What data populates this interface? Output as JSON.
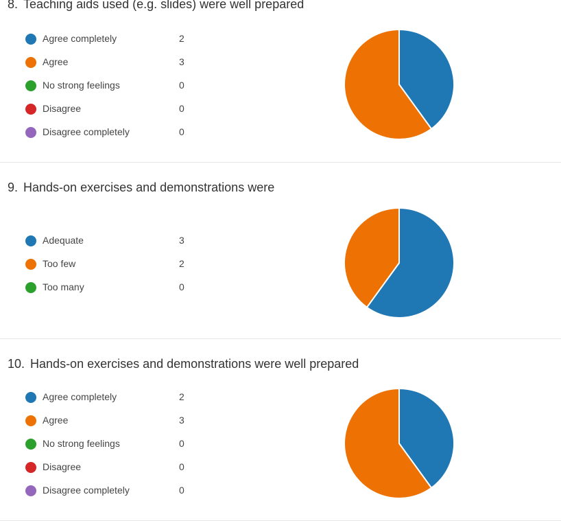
{
  "chart_data": [
    {
      "type": "pie",
      "number": "8.",
      "title": "Teaching aids used (e.g. slides) were well prepared",
      "series": [
        {
          "name": "Agree completely",
          "value": 2,
          "color": "#1f77b4"
        },
        {
          "name": "Agree",
          "value": 3,
          "color": "#ee7203"
        },
        {
          "name": "No strong feelings",
          "value": 0,
          "color": "#2ca02c"
        },
        {
          "name": "Disagree",
          "value": 0,
          "color": "#d62728"
        },
        {
          "name": "Disagree completely",
          "value": 0,
          "color": "#9467bd"
        }
      ]
    },
    {
      "type": "pie",
      "number": "9.",
      "title": "Hands-on exercises and demonstrations were",
      "series": [
        {
          "name": "Adequate",
          "value": 3,
          "color": "#1f77b4"
        },
        {
          "name": "Too few",
          "value": 2,
          "color": "#ee7203"
        },
        {
          "name": "Too many",
          "value": 0,
          "color": "#2ca02c"
        }
      ]
    },
    {
      "type": "pie",
      "number": "10.",
      "title": "Hands-on exercises and demonstrations were well prepared",
      "series": [
        {
          "name": "Agree completely",
          "value": 2,
          "color": "#1f77b4"
        },
        {
          "name": "Agree",
          "value": 3,
          "color": "#ee7203"
        },
        {
          "name": "No strong feelings",
          "value": 0,
          "color": "#2ca02c"
        },
        {
          "name": "Disagree",
          "value": 0,
          "color": "#d62728"
        },
        {
          "name": "Disagree completely",
          "value": 0,
          "color": "#9467bd"
        }
      ]
    }
  ]
}
